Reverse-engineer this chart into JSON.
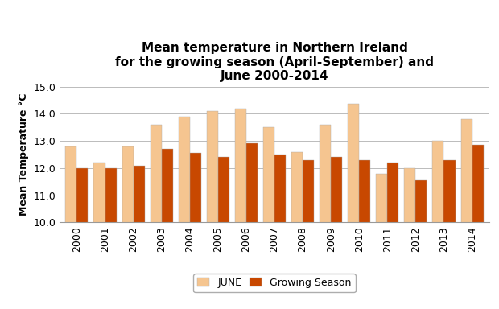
{
  "title": "Mean temperature in Northern Ireland\nfor the growing season (April-September) and\nJune 2000-2014",
  "ylabel": "Mean Temperature °C",
  "years": [
    2000,
    2001,
    2002,
    2003,
    2004,
    2005,
    2006,
    2007,
    2008,
    2009,
    2010,
    2011,
    2012,
    2013,
    2014
  ],
  "june_values": [
    12.8,
    12.2,
    12.8,
    13.6,
    13.9,
    14.1,
    14.2,
    13.5,
    12.6,
    13.6,
    14.35,
    11.8,
    12.0,
    13.0,
    13.8
  ],
  "growing_values": [
    12.0,
    12.0,
    12.1,
    12.7,
    12.55,
    12.4,
    12.9,
    12.5,
    12.3,
    12.4,
    12.3,
    12.2,
    11.55,
    12.3,
    12.85
  ],
  "june_color": "#F5C590",
  "growing_color": "#C84800",
  "ylim": [
    10.0,
    15.0
  ],
  "yticks": [
    10.0,
    11.0,
    12.0,
    13.0,
    14.0,
    15.0
  ],
  "legend_labels": [
    "JUNE",
    "Growing Season"
  ],
  "bar_width": 0.4,
  "title_fontsize": 11,
  "axis_label_fontsize": 9,
  "tick_fontsize": 9
}
